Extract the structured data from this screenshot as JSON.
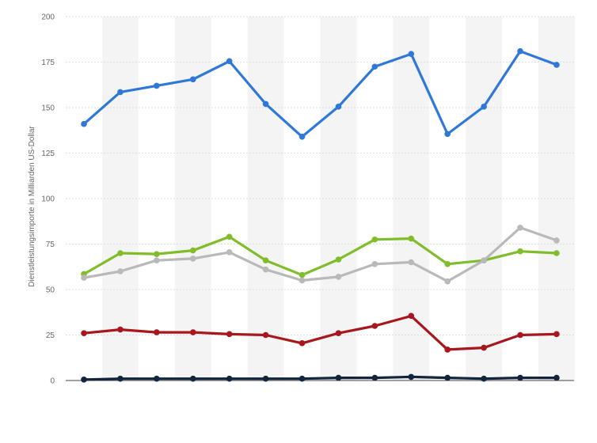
{
  "chart_data": {
    "type": "line",
    "title": "",
    "xlabel": "",
    "ylabel": "Dienstleistungsimporte in Milliarden US-Dollar",
    "ylim": [
      0,
      200
    ],
    "yticks": [
      0,
      25,
      50,
      75,
      100,
      125,
      150,
      175,
      200
    ],
    "grid": true,
    "legend": "none",
    "x": [
      1,
      2,
      3,
      4,
      5,
      6,
      7,
      8,
      9,
      10,
      11,
      12,
      13,
      14
    ],
    "series": [
      {
        "color": "#2f78d8",
        "values": [
          141,
          158.5,
          162,
          165.5,
          175.5,
          152,
          134,
          150.5,
          172.5,
          179.5,
          135.5,
          150.5,
          181,
          173.5
        ]
      },
      {
        "color": "#80bd2a",
        "values": [
          58.5,
          70,
          69.5,
          71.5,
          79,
          66,
          58,
          66.5,
          77.5,
          78,
          64,
          66,
          71,
          70
        ]
      },
      {
        "color": "#b9b9b9",
        "values": [
          56.5,
          60,
          66,
          67,
          70.5,
          61,
          55,
          57,
          64,
          65,
          54.5,
          66,
          84,
          77
        ]
      },
      {
        "color": "#a8171d",
        "values": [
          26,
          28,
          26.5,
          26.5,
          25.5,
          25,
          20.5,
          26,
          30,
          35.5,
          17,
          18,
          25,
          25.5
        ]
      },
      {
        "color": "#11253d",
        "values": [
          0.5,
          1,
          1,
          1,
          1,
          1,
          1,
          1.5,
          1.5,
          2,
          1.5,
          1,
          1.5,
          1.5
        ]
      }
    ]
  }
}
